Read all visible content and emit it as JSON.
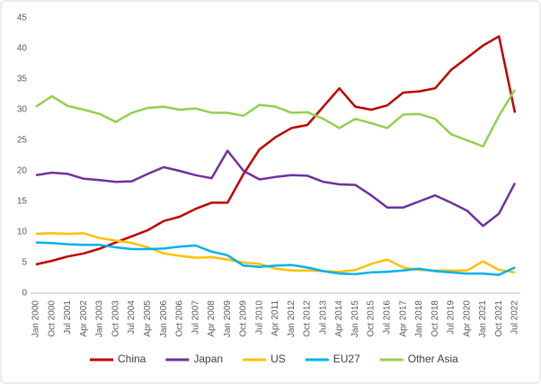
{
  "chart_data": {
    "type": "line",
    "categories": [
      "Jan 2000",
      "Oct 2000",
      "Jul 2001",
      "Apr 2002",
      "Jan 2003",
      "Oct 2003",
      "Jul 2004",
      "Apr 2005",
      "Jan 2006",
      "Oct 2006",
      "Jul 2007",
      "Apr 2008",
      "Jan 2009",
      "Oct 2009",
      "Jul 2010",
      "Apr 2011",
      "Jan 2012",
      "Oct 2012",
      "Jul 2013",
      "Apr 2014",
      "Jan 2015",
      "Oct 2015",
      "Jul 2016",
      "Apr 2017",
      "Jan 2018",
      "Oct 2018",
      "Jul 2019",
      "Apr 2020",
      "Jan 2021",
      "Oct 2021",
      "Jul 2022"
    ],
    "series": [
      {
        "name": "China",
        "color": "#c00000",
        "values": [
          4.7,
          5.3,
          6.0,
          6.5,
          7.3,
          8.3,
          9.3,
          10.3,
          11.8,
          12.5,
          13.8,
          14.8,
          14.8,
          19.5,
          23.5,
          25.5,
          27.0,
          27.5,
          30.5,
          33.5,
          30.5,
          30.0,
          30.7,
          32.8,
          33.0,
          33.5,
          36.5,
          38.5,
          40.5,
          42.0,
          29.5
        ]
      },
      {
        "name": "Japan",
        "color": "#7030a0",
        "values": [
          19.3,
          19.7,
          19.5,
          18.7,
          18.5,
          18.2,
          18.3,
          19.5,
          20.6,
          20.0,
          19.3,
          18.8,
          23.3,
          20.0,
          18.6,
          19.0,
          19.3,
          19.2,
          18.2,
          17.8,
          17.7,
          16.0,
          14.0,
          14.0,
          15.0,
          16.0,
          14.8,
          13.5,
          11.0,
          13.0,
          18.0
        ]
      },
      {
        "name": "US",
        "color": "#ffc000",
        "values": [
          9.7,
          9.8,
          9.7,
          9.8,
          9.0,
          8.6,
          8.2,
          7.5,
          6.5,
          6.1,
          5.8,
          5.9,
          5.5,
          5.0,
          4.8,
          4.0,
          3.7,
          3.7,
          3.6,
          3.5,
          3.8,
          4.8,
          5.5,
          4.2,
          3.8,
          3.7,
          3.7,
          3.7,
          5.2,
          3.8,
          3.4
        ]
      },
      {
        "name": "EU27",
        "color": "#00b0f0",
        "values": [
          8.3,
          8.2,
          8.0,
          7.9,
          7.9,
          7.5,
          7.2,
          7.2,
          7.3,
          7.6,
          7.8,
          6.8,
          6.2,
          4.5,
          4.3,
          4.5,
          4.6,
          4.2,
          3.6,
          3.2,
          3.1,
          3.4,
          3.5,
          3.7,
          4.0,
          3.6,
          3.4,
          3.2,
          3.2,
          3.0,
          4.2
        ]
      },
      {
        "name": "Other Asia",
        "color": "#92d050",
        "values": [
          30.5,
          32.2,
          30.6,
          30.0,
          29.3,
          28.0,
          29.5,
          30.3,
          30.5,
          30.0,
          30.2,
          29.5,
          29.5,
          29.0,
          30.8,
          30.5,
          29.5,
          29.6,
          28.5,
          27.0,
          28.5,
          27.8,
          27.0,
          29.2,
          29.3,
          28.5,
          26.0,
          25.0,
          24.0,
          29.0,
          33.3
        ]
      }
    ],
    "ylim": [
      0,
      45
    ],
    "yticks": [
      0,
      5,
      10,
      15,
      20,
      25,
      30,
      35,
      40,
      45
    ],
    "grid": false,
    "legend": "bottom"
  }
}
